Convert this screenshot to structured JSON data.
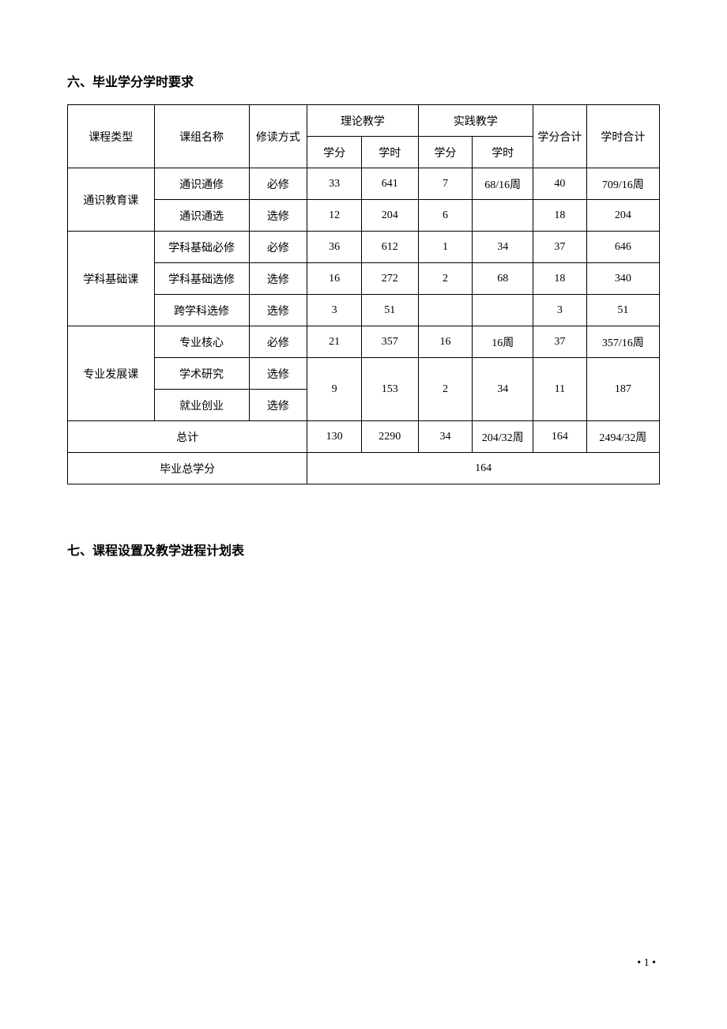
{
  "headings": {
    "section6": "六、毕业学分学时要求",
    "section7": "七、课程设置及教学进程计划表"
  },
  "table": {
    "headers": {
      "course_type": "课程类型",
      "group_name": "课组名称",
      "study_mode": "修读方式",
      "theory": "理论教学",
      "practice": "实践教学",
      "credits": "学分",
      "hours": "学时",
      "total_credits": "学分合计",
      "total_hours": "学时合计"
    },
    "rows": [
      {
        "type": "通识教育课",
        "type_rowspan": 2,
        "group": "通识通修",
        "mode": "必修",
        "t_credit": "33",
        "t_hours": "641",
        "p_credit": "7",
        "p_hours": "68/16周",
        "tot_credit": "40",
        "tot_hours": "709/16周"
      },
      {
        "group": "通识通选",
        "mode": "选修",
        "t_credit": "12",
        "t_hours": "204",
        "p_credit": "6",
        "p_hours": "",
        "tot_credit": "18",
        "tot_hours": "204"
      },
      {
        "type": "学科基础课",
        "type_rowspan": 3,
        "group": "学科基础必修",
        "mode": "必修",
        "t_credit": "36",
        "t_hours": "612",
        "p_credit": "1",
        "p_hours": "34",
        "tot_credit": "37",
        "tot_hours": "646"
      },
      {
        "group": "学科基础选修",
        "mode": "选修",
        "t_credit": "16",
        "t_hours": "272",
        "p_credit": "2",
        "p_hours": "68",
        "tot_credit": "18",
        "tot_hours": "340"
      },
      {
        "group": "跨学科选修",
        "mode": "选修",
        "t_credit": "3",
        "t_hours": "51",
        "p_credit": "",
        "p_hours": "",
        "tot_credit": "3",
        "tot_hours": "51"
      },
      {
        "type": "专业发展课",
        "type_rowspan": 3,
        "group": "专业核心",
        "mode": "必修",
        "t_credit": "21",
        "t_hours": "357",
        "p_credit": "16",
        "p_hours": "16周",
        "tot_credit": "37",
        "tot_hours": "357/16周"
      },
      {
        "group": "学术研究",
        "mode": "选修",
        "merge_cells": true,
        "t_credit": "9",
        "t_hours": "153",
        "p_credit": "2",
        "p_hours": "34",
        "tot_credit": "11",
        "tot_hours": "187"
      },
      {
        "group": "就业创业",
        "mode": "选修"
      }
    ],
    "totals": {
      "label": "总计",
      "t_credit": "130",
      "t_hours": "2290",
      "p_credit": "34",
      "p_hours": "204/32周",
      "tot_credit": "164",
      "tot_hours": "2494/32周"
    },
    "grad_total": {
      "label": "毕业总学分",
      "value": "164"
    }
  },
  "page_number": "• 1 •"
}
